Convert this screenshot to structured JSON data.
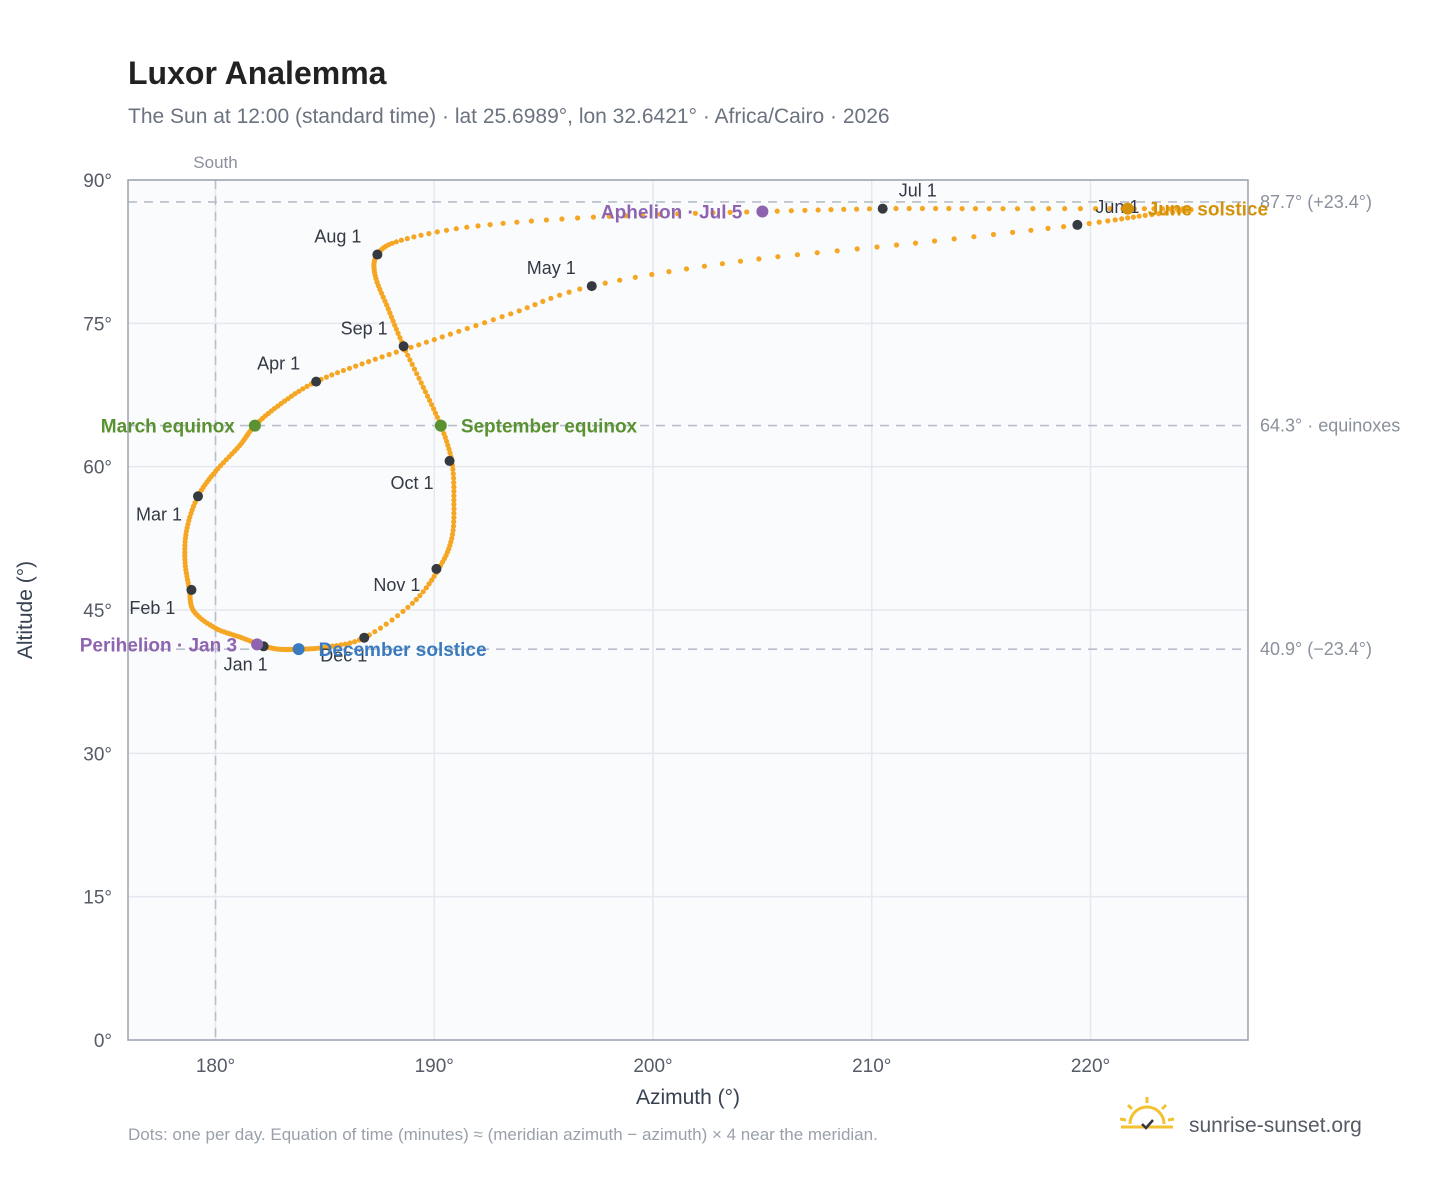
{
  "header": {
    "title": "Luxor Analemma",
    "subtitle": "The Sun at 12:00 (standard time) · lat 25.6989°, lon 32.6421° · Africa/Cairo · 2026"
  },
  "footer": {
    "note": "Dots: one per day. Equation of time (minutes) ≈ (meridian azimuth − azimuth) × 4 near the meridian.",
    "brand": "sunrise-sunset.org"
  },
  "colors": {
    "curve": "#f5a623",
    "marker": "#343a40",
    "equinox": "#5a9232",
    "december_solstice": "#3a7bbf",
    "june_solstice": "#d4920a",
    "apsis": "#8e64b0",
    "grid": "#e5e8ee",
    "ref_line": "#b8bfca",
    "plot_bg": "#fafbfd",
    "frame": "#9aa3b0"
  },
  "chart_data": {
    "type": "scatter",
    "xlabel": "Azimuth (°)",
    "ylabel": "Altitude (°)",
    "xlim": [
      176,
      227.2
    ],
    "ylim": [
      0,
      90
    ],
    "xticks": [
      180,
      190,
      200,
      210,
      220
    ],
    "yticks": [
      0,
      15,
      30,
      45,
      60,
      75,
      90
    ],
    "tick_suffix": "°",
    "grid": true,
    "meridian": {
      "azimuth": 180,
      "label": "South"
    },
    "reference_lines": [
      {
        "altitude": 87.7,
        "label": "87.7° (+23.4°)"
      },
      {
        "altitude": 64.3,
        "label": "64.3° · equinoxes"
      },
      {
        "altitude": 40.9,
        "label": "40.9° (−23.4°)"
      }
    ],
    "curve_keypoints": [
      [
        182.2,
        41.2
      ],
      [
        181.2,
        42.1
      ],
      [
        180.0,
        43.1
      ],
      [
        179.0,
        44.9
      ],
      [
        178.8,
        47.2
      ],
      [
        178.6,
        50.3
      ],
      [
        178.7,
        53.6
      ],
      [
        179.2,
        56.9
      ],
      [
        180.0,
        59.5
      ],
      [
        181.1,
        62.2
      ],
      [
        181.8,
        64.3
      ],
      [
        183.0,
        66.6
      ],
      [
        184.6,
        68.9
      ],
      [
        187.0,
        71.0
      ],
      [
        190.0,
        73.3
      ],
      [
        193.5,
        76.0
      ],
      [
        197.2,
        78.9
      ],
      [
        204.0,
        81.5
      ],
      [
        212.0,
        83.4
      ],
      [
        219.4,
        85.3
      ],
      [
        222.5,
        86.3
      ],
      [
        224.6,
        86.9
      ],
      [
        222.0,
        87.0
      ],
      [
        216.0,
        87.0
      ],
      [
        210.5,
        87.0
      ],
      [
        205.0,
        86.7
      ],
      [
        198.0,
        86.2
      ],
      [
        192.0,
        85.2
      ],
      [
        188.5,
        83.7
      ],
      [
        187.4,
        82.2
      ],
      [
        187.3,
        80.0
      ],
      [
        187.9,
        76.5
      ],
      [
        188.6,
        72.6
      ],
      [
        189.5,
        68.3
      ],
      [
        190.3,
        64.3
      ],
      [
        190.8,
        60.6
      ],
      [
        190.9,
        56.5
      ],
      [
        190.8,
        52.5
      ],
      [
        190.2,
        49.3
      ],
      [
        189.0,
        45.7
      ],
      [
        186.8,
        42.1
      ],
      [
        185.0,
        41.1
      ],
      [
        183.8,
        40.9
      ],
      [
        182.9,
        40.9
      ],
      [
        182.2,
        41.2
      ]
    ],
    "month_markers": [
      {
        "label": "Jan 1",
        "az": 182.2,
        "alt": 41.2
      },
      {
        "label": "Feb 1",
        "az": 178.9,
        "alt": 47.1
      },
      {
        "label": "Mar 1",
        "az": 179.2,
        "alt": 56.9
      },
      {
        "label": "Apr 1",
        "az": 184.6,
        "alt": 68.9
      },
      {
        "label": "May 1",
        "az": 197.2,
        "alt": 78.9
      },
      {
        "label": "Jun 1",
        "az": 219.4,
        "alt": 85.3
      },
      {
        "label": "Jul 1",
        "az": 210.5,
        "alt": 87.0
      },
      {
        "label": "Aug 1",
        "az": 187.4,
        "alt": 82.2
      },
      {
        "label": "Sep 1",
        "az": 188.6,
        "alt": 72.6
      },
      {
        "label": "Oct 1",
        "az": 190.7,
        "alt": 60.6
      },
      {
        "label": "Nov 1",
        "az": 190.1,
        "alt": 49.3
      },
      {
        "label": "Dec 1",
        "az": 186.8,
        "alt": 42.1
      }
    ],
    "events": [
      {
        "label": "March equinox",
        "az": 181.8,
        "alt": 64.3,
        "color_key": "equinox",
        "anchor": "left"
      },
      {
        "label": "September equinox",
        "az": 190.3,
        "alt": 64.3,
        "color_key": "equinox",
        "anchor": "right"
      },
      {
        "label": "December solstice",
        "az": 183.8,
        "alt": 40.9,
        "color_key": "december_solstice",
        "anchor": "right"
      },
      {
        "label": "June solstice",
        "az": 221.7,
        "alt": 87.0,
        "color_key": "june_solstice",
        "anchor": "right"
      },
      {
        "label": "Perihelion · Jan 3",
        "az": 181.9,
        "alt": 41.4,
        "color_key": "apsis",
        "anchor": "left"
      },
      {
        "label": "Aphelion · Jul 5",
        "az": 205.0,
        "alt": 86.7,
        "color_key": "apsis",
        "anchor": "left"
      }
    ]
  }
}
